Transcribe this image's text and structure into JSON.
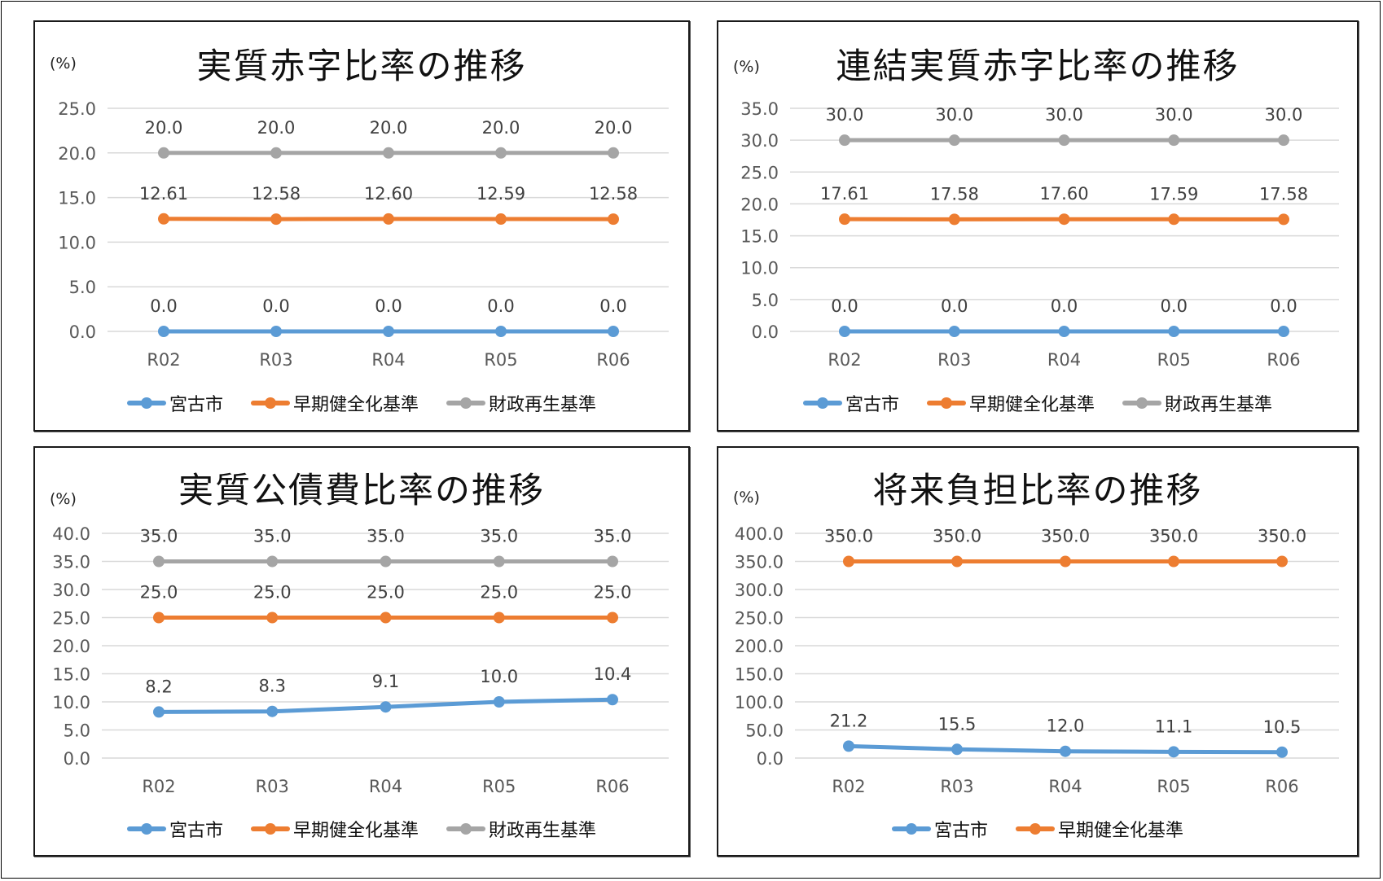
{
  "colors": {
    "miyako": "#5B9BD5",
    "early": "#ED7D31",
    "rebuild": "#A5A5A5",
    "grid": "#D9D9D9",
    "axis_text": "#595959",
    "label_text": "#404040"
  },
  "chart_data": [
    {
      "type": "line",
      "title": "実質赤字比率の推移",
      "ylabel": "(%)",
      "categories": [
        "R02",
        "R03",
        "R04",
        "R05",
        "R06"
      ],
      "yticks": [
        "0.0",
        "5.0",
        "10.0",
        "15.0",
        "20.0",
        "25.0"
      ],
      "ylim": [
        0,
        25
      ],
      "grid": true,
      "legend_position": "bottom",
      "series": [
        {
          "name": "宮古市",
          "color_key": "miyako",
          "values": [
            0.0,
            0.0,
            0.0,
            0.0,
            0.0
          ],
          "labels": [
            "0.0",
            "0.0",
            "0.0",
            "0.0",
            "0.0"
          ]
        },
        {
          "name": "早期健全化基準",
          "color_key": "early",
          "values": [
            12.61,
            12.58,
            12.6,
            12.59,
            12.58
          ],
          "labels": [
            "12.61",
            "12.58",
            "12.60",
            "12.59",
            "12.58"
          ]
        },
        {
          "name": "財政再生基準",
          "color_key": "rebuild",
          "values": [
            20.0,
            20.0,
            20.0,
            20.0,
            20.0
          ],
          "labels": [
            "20.0",
            "20.0",
            "20.0",
            "20.0",
            "20.0"
          ]
        }
      ]
    },
    {
      "type": "line",
      "title": "連結実質赤字比率の推移",
      "ylabel": "(%)",
      "categories": [
        "R02",
        "R03",
        "R04",
        "R05",
        "R06"
      ],
      "yticks": [
        "0.0",
        "5.0",
        "10.0",
        "15.0",
        "20.0",
        "25.0",
        "30.0",
        "35.0"
      ],
      "ylim": [
        0,
        35
      ],
      "grid": true,
      "legend_position": "bottom",
      "series": [
        {
          "name": "宮古市",
          "color_key": "miyako",
          "values": [
            0.0,
            0.0,
            0.0,
            0.0,
            0.0
          ],
          "labels": [
            "0.0",
            "0.0",
            "0.0",
            "0.0",
            "0.0"
          ]
        },
        {
          "name": "早期健全化基準",
          "color_key": "early",
          "values": [
            17.61,
            17.58,
            17.6,
            17.59,
            17.58
          ],
          "labels": [
            "17.61",
            "17.58",
            "17.60",
            "17.59",
            "17.58"
          ]
        },
        {
          "name": "財政再生基準",
          "color_key": "rebuild",
          "values": [
            30.0,
            30.0,
            30.0,
            30.0,
            30.0
          ],
          "labels": [
            "30.0",
            "30.0",
            "30.0",
            "30.0",
            "30.0"
          ]
        }
      ]
    },
    {
      "type": "line",
      "title": "実質公債費比率の推移",
      "ylabel": "(%)",
      "categories": [
        "R02",
        "R03",
        "R04",
        "R05",
        "R06"
      ],
      "yticks": [
        "0.0",
        "5.0",
        "10.0",
        "15.0",
        "20.0",
        "25.0",
        "30.0",
        "35.0",
        "40.0"
      ],
      "ylim": [
        0,
        40
      ],
      "grid": true,
      "legend_position": "bottom",
      "series": [
        {
          "name": "宮古市",
          "color_key": "miyako",
          "values": [
            8.2,
            8.3,
            9.1,
            10.0,
            10.4
          ],
          "labels": [
            "8.2",
            "8.3",
            "9.1",
            "10.0",
            "10.4"
          ]
        },
        {
          "name": "早期健全化基準",
          "color_key": "early",
          "values": [
            25.0,
            25.0,
            25.0,
            25.0,
            25.0
          ],
          "labels": [
            "25.0",
            "25.0",
            "25.0",
            "25.0",
            "25.0"
          ]
        },
        {
          "name": "財政再生基準",
          "color_key": "rebuild",
          "values": [
            35.0,
            35.0,
            35.0,
            35.0,
            35.0
          ],
          "labels": [
            "35.0",
            "35.0",
            "35.0",
            "35.0",
            "35.0"
          ]
        }
      ]
    },
    {
      "type": "line",
      "title": "将来負担比率の推移",
      "ylabel": "(%)",
      "categories": [
        "R02",
        "R03",
        "R04",
        "R05",
        "R06"
      ],
      "yticks": [
        "0.0",
        "50.0",
        "100.0",
        "150.0",
        "200.0",
        "250.0",
        "300.0",
        "350.0",
        "400.0"
      ],
      "ylim": [
        0,
        400
      ],
      "grid": true,
      "legend_position": "bottom",
      "series": [
        {
          "name": "宮古市",
          "color_key": "miyako",
          "values": [
            21.2,
            15.5,
            12.0,
            11.1,
            10.5
          ],
          "labels": [
            "21.2",
            "15.5",
            "12.0",
            "11.1",
            "10.5"
          ]
        },
        {
          "name": "早期健全化基準",
          "color_key": "early",
          "values": [
            350.0,
            350.0,
            350.0,
            350.0,
            350.0
          ],
          "labels": [
            "350.0",
            "350.0",
            "350.0",
            "350.0",
            "350.0"
          ]
        }
      ]
    }
  ]
}
